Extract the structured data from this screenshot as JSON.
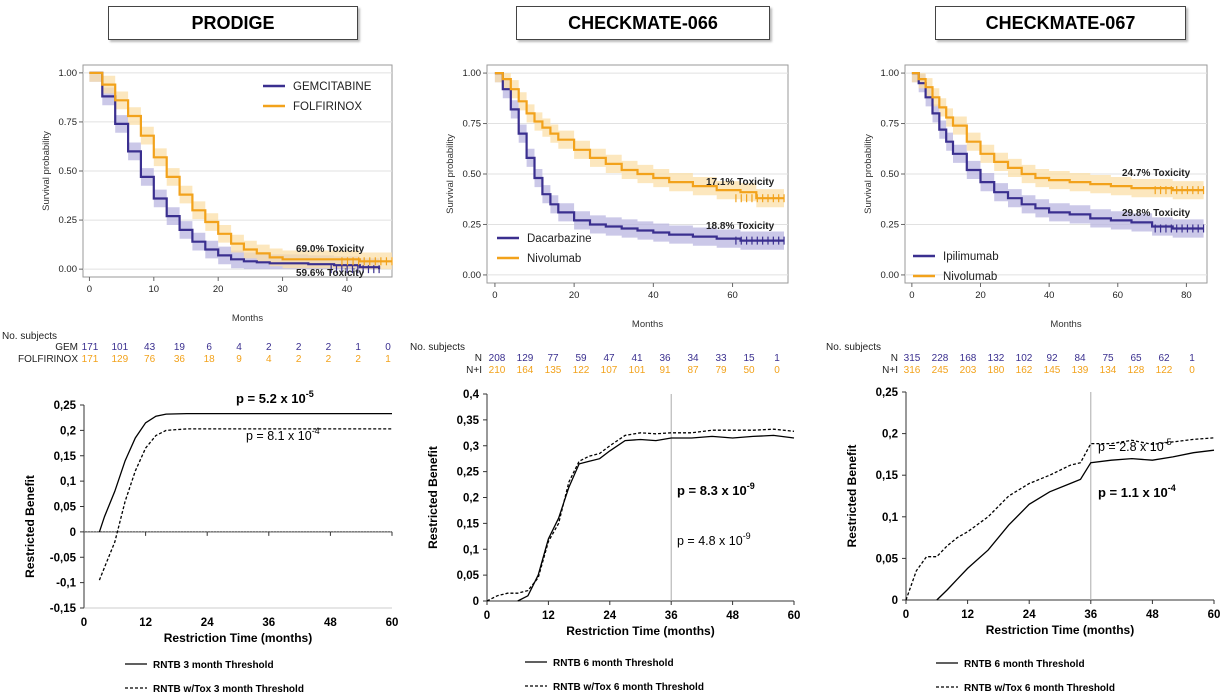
{
  "panels": [
    {
      "title": "PRODIGE"
    },
    {
      "title": "CHECKMATE-066"
    },
    {
      "title": "CHECKMATE-067"
    }
  ],
  "colors": {
    "navy": "#3a2f8f",
    "orange": "#f2a21b",
    "navy_band": "#b9b6e0",
    "orange_band": "#fbdfa8"
  },
  "chart_data": [
    {
      "id": "km1",
      "type": "line",
      "title": "",
      "xlabel": "Months",
      "ylabel": "Survival probability",
      "xlim": [
        -1,
        47
      ],
      "ylim": [
        -0.04,
        1.04
      ],
      "xticks": [
        0,
        10,
        20,
        30,
        40
      ],
      "yticks": [
        "0.00",
        "0.25",
        "0.50",
        "0.75",
        "1.00"
      ],
      "legend_position": "top-right",
      "series": [
        {
          "name": "GEMCITABINE",
          "color": "#3a2f8f",
          "x": [
            0,
            2,
            4,
            6,
            8,
            10,
            12,
            14,
            16,
            18,
            20,
            22,
            24,
            26,
            28,
            30,
            34,
            38,
            42,
            45
          ],
          "y": [
            1.0,
            0.88,
            0.74,
            0.6,
            0.47,
            0.36,
            0.27,
            0.2,
            0.14,
            0.1,
            0.07,
            0.05,
            0.04,
            0.035,
            0.03,
            0.03,
            0.025,
            0.02,
            0.01,
            0.0
          ]
        },
        {
          "name": "FOLFIRINOX",
          "color": "#f2a21b",
          "x": [
            0,
            2,
            4,
            6,
            8,
            10,
            12,
            14,
            16,
            18,
            20,
            22,
            24,
            26,
            28,
            30,
            34,
            38,
            42,
            47
          ],
          "y": [
            1.0,
            0.94,
            0.86,
            0.78,
            0.68,
            0.57,
            0.47,
            0.38,
            0.3,
            0.24,
            0.18,
            0.13,
            0.1,
            0.08,
            0.06,
            0.05,
            0.05,
            0.05,
            0.04,
            0.04
          ]
        }
      ],
      "annotations": [
        "69.0% Toxicity",
        "59.6% Toxicity"
      ],
      "risk_table": {
        "header": "No. subjects",
        "rows": [
          {
            "label": "GEM",
            "values": [
              "171",
              "101",
              "43",
              "19",
              "6",
              "4",
              "2",
              "2",
              "2",
              "1",
              "0"
            ]
          },
          {
            "label": "FOLFIRINOX",
            "values": [
              "171",
              "129",
              "76",
              "36",
              "18",
              "9",
              "4",
              "2",
              "2",
              "2",
              "1"
            ]
          }
        ]
      }
    },
    {
      "id": "km2",
      "type": "line",
      "title": "",
      "xlabel": "Months",
      "ylabel": "Survival probability",
      "xlim": [
        -2,
        74
      ],
      "ylim": [
        -0.04,
        1.04
      ],
      "xticks": [
        0,
        20,
        40,
        60
      ],
      "yticks": [
        "0.00",
        "0.25",
        "0.50",
        "0.75",
        "1.00"
      ],
      "legend_position": "bottom-left",
      "series": [
        {
          "name": "Dacarbazine",
          "color": "#3a2f8f",
          "x": [
            0,
            2,
            4,
            6,
            8,
            10,
            12,
            14,
            16,
            20,
            24,
            28,
            32,
            36,
            40,
            44,
            50,
            56,
            62,
            68,
            73
          ],
          "y": [
            1.0,
            0.92,
            0.82,
            0.7,
            0.58,
            0.48,
            0.4,
            0.35,
            0.31,
            0.27,
            0.25,
            0.24,
            0.23,
            0.22,
            0.21,
            0.2,
            0.19,
            0.18,
            0.17,
            0.17,
            0.17
          ]
        },
        {
          "name": "Nivolumab",
          "color": "#f2a21b",
          "x": [
            0,
            2,
            4,
            6,
            8,
            10,
            12,
            14,
            16,
            20,
            24,
            28,
            32,
            36,
            40,
            44,
            50,
            56,
            62,
            66,
            70,
            73
          ],
          "y": [
            1.0,
            0.97,
            0.92,
            0.86,
            0.8,
            0.76,
            0.73,
            0.7,
            0.67,
            0.62,
            0.58,
            0.55,
            0.52,
            0.5,
            0.48,
            0.46,
            0.44,
            0.42,
            0.41,
            0.38,
            0.38,
            0.38
          ]
        }
      ],
      "annotations": [
        "17.1% Toxicity",
        "18.8% Toxicity"
      ],
      "risk_table": {
        "header": "No. subjects",
        "rows": [
          {
            "label": "N",
            "values": [
              "208",
              "129",
              "77",
              "59",
              "47",
              "41",
              "36",
              "34",
              "33",
              "15",
              "1"
            ]
          },
          {
            "label": "N+I",
            "values": [
              "210",
              "164",
              "135",
              "122",
              "107",
              "101",
              "91",
              "87",
              "79",
              "50",
              "0"
            ]
          }
        ]
      }
    },
    {
      "id": "km3",
      "type": "line",
      "title": "",
      "xlabel": "Months",
      "ylabel": "Survival probability",
      "xlim": [
        -2,
        86
      ],
      "ylim": [
        -0.04,
        1.04
      ],
      "xticks": [
        0,
        20,
        40,
        60,
        80
      ],
      "yticks": [
        "0.00",
        "0.25",
        "0.50",
        "0.75",
        "1.00"
      ],
      "legend_position": "bottom-left",
      "series": [
        {
          "name": "Ipilimumab",
          "color": "#3a2f8f",
          "x": [
            0,
            2,
            4,
            6,
            8,
            10,
            12,
            16,
            20,
            24,
            28,
            32,
            36,
            40,
            46,
            52,
            58,
            64,
            70,
            76,
            80,
            85
          ],
          "y": [
            1.0,
            0.95,
            0.88,
            0.8,
            0.72,
            0.66,
            0.6,
            0.52,
            0.46,
            0.41,
            0.38,
            0.35,
            0.33,
            0.31,
            0.3,
            0.28,
            0.27,
            0.26,
            0.24,
            0.23,
            0.23,
            0.23
          ]
        },
        {
          "name": "Nivolumab",
          "color": "#f2a21b",
          "x": [
            0,
            2,
            4,
            6,
            8,
            10,
            12,
            16,
            20,
            24,
            28,
            32,
            36,
            40,
            46,
            52,
            58,
            64,
            70,
            76,
            80,
            85
          ],
          "y": [
            1.0,
            0.97,
            0.93,
            0.88,
            0.83,
            0.78,
            0.74,
            0.66,
            0.6,
            0.56,
            0.53,
            0.5,
            0.48,
            0.47,
            0.46,
            0.45,
            0.44,
            0.43,
            0.43,
            0.42,
            0.42,
            0.42
          ]
        }
      ],
      "annotations": [
        "24.7% Toxicity",
        "29.8% Toxicity"
      ],
      "risk_table": {
        "header": "No. subjects",
        "rows": [
          {
            "label": "N",
            "values": [
              "315",
              "228",
              "168",
              "132",
              "102",
              "92",
              "84",
              "75",
              "65",
              "62",
              "1"
            ]
          },
          {
            "label": "N+I",
            "values": [
              "316",
              "245",
              "203",
              "180",
              "162",
              "145",
              "139",
              "134",
              "128",
              "122",
              "0"
            ]
          }
        ]
      }
    },
    {
      "id": "rb1",
      "type": "line",
      "title": "",
      "xlabel": "Restriction Time (months)",
      "ylabel": "Restricted Benefit",
      "xlim": [
        0,
        60
      ],
      "ylim": [
        -0.15,
        0.25
      ],
      "xticks": [
        "0",
        "12",
        "24",
        "36",
        "48",
        "60"
      ],
      "yticks": [
        "-0,15",
        "-0,1",
        "-0,05",
        "0",
        "0,05",
        "0,1",
        "0,15",
        "0,2",
        "0,25"
      ],
      "legend_position": "bottom",
      "series": [
        {
          "name": "RNTB 3 month Threshold",
          "style": "solid",
          "x": [
            3,
            4,
            6,
            8,
            10,
            12,
            14,
            16,
            20,
            24,
            60
          ],
          "y": [
            0.0,
            0.03,
            0.08,
            0.14,
            0.185,
            0.215,
            0.228,
            0.232,
            0.233,
            0.233,
            0.233
          ]
        },
        {
          "name": "RNTB w/Tox 3 month Threshold",
          "style": "dashed",
          "x": [
            3,
            4,
            6,
            8,
            10,
            12,
            14,
            16,
            20,
            24,
            60
          ],
          "y": [
            -0.095,
            -0.07,
            -0.02,
            0.06,
            0.12,
            0.165,
            0.19,
            0.2,
            0.203,
            0.203,
            0.203
          ]
        }
      ],
      "annotations": [
        {
          "text": "p = 5.2 x 10",
          "sup": "-5",
          "bold": true
        },
        {
          "text": "p = 8.1 x 10",
          "sup": "-4",
          "bold": false
        }
      ]
    },
    {
      "id": "rb2",
      "type": "line",
      "title": "",
      "xlabel": "Restriction Time (months)",
      "ylabel": "Restricted Benefit",
      "xlim": [
        0,
        60
      ],
      "ylim": [
        0,
        0.4
      ],
      "vline_x": 36,
      "xticks": [
        "0",
        "12",
        "24",
        "36",
        "48",
        "60"
      ],
      "yticks": [
        "0",
        "0,05",
        "0,1",
        "0,15",
        "0,2",
        "0,25",
        "0,3",
        "0,35",
        "0,4"
      ],
      "legend_position": "bottom",
      "series": [
        {
          "name": "RNTB 6 month Threshold",
          "style": "solid",
          "x": [
            6,
            8,
            10,
            12,
            14,
            16,
            18,
            20,
            22,
            24,
            27,
            30,
            33,
            36,
            40,
            44,
            48,
            52,
            56,
            60
          ],
          "y": [
            0.0,
            0.01,
            0.05,
            0.12,
            0.16,
            0.22,
            0.265,
            0.27,
            0.275,
            0.29,
            0.31,
            0.312,
            0.31,
            0.315,
            0.315,
            0.318,
            0.315,
            0.318,
            0.32,
            0.315
          ]
        },
        {
          "name": "RNTB w/Tox 6 month Threshold",
          "style": "dashed",
          "x": [
            0,
            2,
            4,
            6,
            8,
            10,
            12,
            14,
            16,
            18,
            20,
            22,
            24,
            27,
            30,
            33,
            36,
            40,
            44,
            48,
            52,
            56,
            60
          ],
          "y": [
            0.0,
            0.01,
            0.015,
            0.015,
            0.02,
            0.045,
            0.115,
            0.15,
            0.23,
            0.27,
            0.28,
            0.285,
            0.3,
            0.32,
            0.325,
            0.323,
            0.325,
            0.325,
            0.33,
            0.33,
            0.33,
            0.332,
            0.328
          ]
        }
      ],
      "annotations": [
        {
          "text": "p = 8.3 x 10",
          "sup": "-9",
          "bold": true
        },
        {
          "text": "p = 4.8 x 10",
          "sup": "-9",
          "bold": false
        }
      ]
    },
    {
      "id": "rb3",
      "type": "line",
      "title": "",
      "xlabel": "Restriction Time (months)",
      "ylabel": "Restricted Benefit",
      "xlim": [
        0,
        60
      ],
      "ylim": [
        0,
        0.25
      ],
      "vline_x": 36,
      "xticks": [
        "0",
        "12",
        "24",
        "36",
        "48",
        "60"
      ],
      "yticks": [
        "0",
        "0,05",
        "0,1",
        "0,15",
        "0,2",
        "0,25"
      ],
      "legend_position": "bottom",
      "series": [
        {
          "name": "RNTB 6 month Threshold",
          "style": "solid",
          "x": [
            6,
            8,
            10,
            12,
            16,
            20,
            24,
            28,
            32,
            34,
            36,
            40,
            44,
            48,
            52,
            56,
            60
          ],
          "y": [
            0.0,
            0.012,
            0.025,
            0.038,
            0.06,
            0.09,
            0.115,
            0.13,
            0.14,
            0.145,
            0.165,
            0.168,
            0.17,
            0.168,
            0.172,
            0.177,
            0.18
          ]
        },
        {
          "name": "RNTB w/Tox 6 month Threshold",
          "style": "dashed",
          "x": [
            0,
            2,
            4,
            6,
            8,
            10,
            12,
            16,
            20,
            24,
            28,
            32,
            34,
            36,
            40,
            44,
            48,
            52,
            56,
            60
          ],
          "y": [
            0.0,
            0.035,
            0.052,
            0.052,
            0.065,
            0.075,
            0.082,
            0.1,
            0.125,
            0.14,
            0.15,
            0.162,
            0.165,
            0.188,
            0.188,
            0.192,
            0.187,
            0.19,
            0.193,
            0.195
          ]
        }
      ],
      "annotations": [
        {
          "text": "p = 2.8 x 10",
          "sup": "-5",
          "bold": false
        },
        {
          "text": "p = 1.1 x 10",
          "sup": "-4",
          "bold": true
        }
      ]
    }
  ]
}
